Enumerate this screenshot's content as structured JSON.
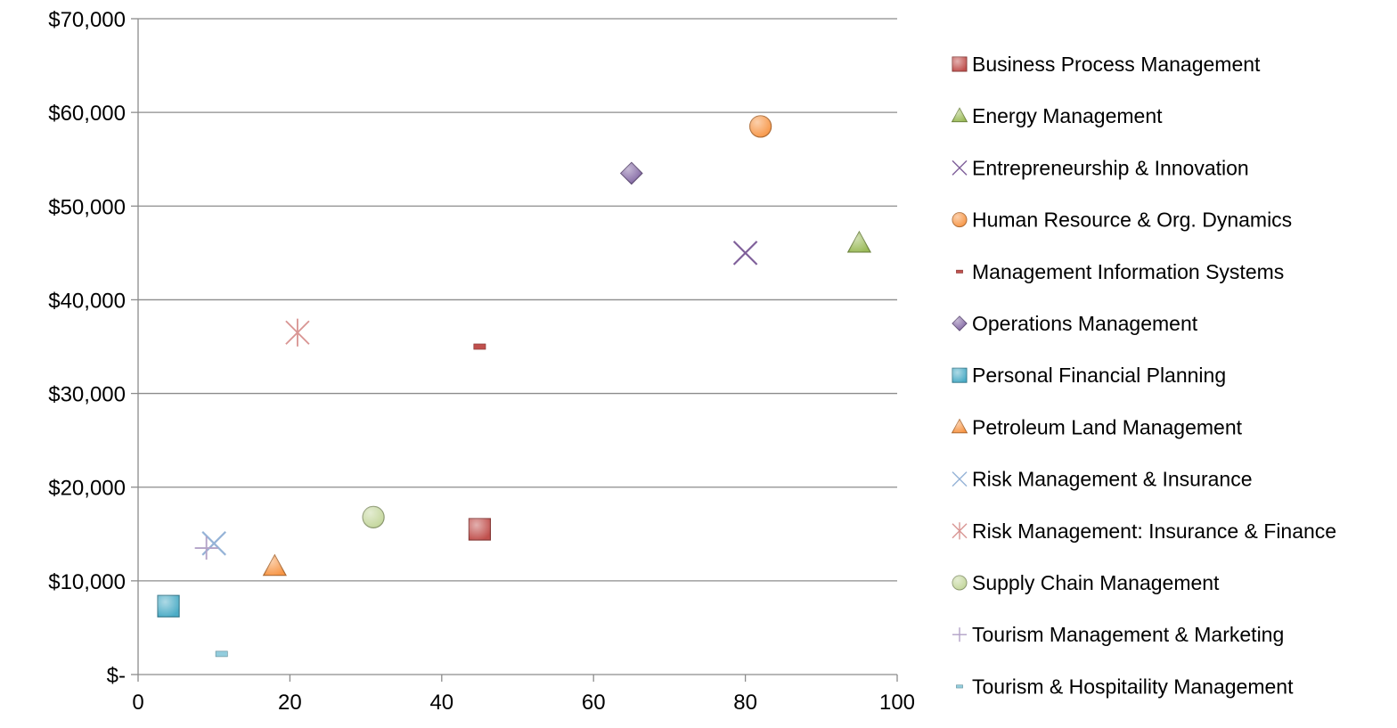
{
  "chart_data": {
    "type": "scatter",
    "title": "",
    "xlabel": "",
    "ylabel": "",
    "xlim": [
      0,
      100
    ],
    "ylim": [
      0,
      70000
    ],
    "x_ticks": [
      0,
      20,
      40,
      60,
      80,
      100
    ],
    "x_tick_labels": [
      "0",
      "20",
      "40",
      "60",
      "80",
      "100"
    ],
    "y_ticks": [
      0,
      10000,
      20000,
      30000,
      40000,
      50000,
      60000,
      70000
    ],
    "y_tick_labels": [
      "$-",
      "$10,000",
      "$20,000",
      "$30,000",
      "$40,000",
      "$50,000",
      "$60,000",
      "$70,000"
    ],
    "grid": "horizontal",
    "legend_position": "right",
    "series": [
      {
        "name": "Business Process Management",
        "marker": "square",
        "color": "#c0504d",
        "x": 45,
        "y": 15500
      },
      {
        "name": "Energy Management",
        "marker": "triangle",
        "color": "#9bbb59",
        "x": 95,
        "y": 46000
      },
      {
        "name": "Entrepreneurship & Innovation",
        "marker": "x",
        "color": "#7f5f9a",
        "x": 80,
        "y": 45000
      },
      {
        "name": "Human Resource & Org. Dynamics",
        "marker": "circle",
        "color": "#f79646",
        "x": 82,
        "y": 58500
      },
      {
        "name": "Management Information Systems",
        "marker": "dash",
        "color": "#c0504d",
        "x": 45,
        "y": 35000
      },
      {
        "name": "Operations Management",
        "marker": "diamond",
        "color": "#8064a2",
        "x": 65,
        "y": 53500
      },
      {
        "name": "Personal Financial Planning",
        "marker": "square",
        "color": "#4bacc6",
        "x": 4,
        "y": 7300
      },
      {
        "name": "Petroleum Land Management",
        "marker": "triangle",
        "color": "#f79646",
        "x": 18,
        "y": 11500
      },
      {
        "name": "Risk Management & Insurance",
        "marker": "x",
        "color": "#95b3d7",
        "x": 10,
        "y": 14000
      },
      {
        "name": "Risk Management: Insurance & Finance",
        "marker": "star",
        "color": "#d99694",
        "x": 21,
        "y": 36500
      },
      {
        "name": "Supply Chain Management",
        "marker": "circle",
        "color": "#c3d69b",
        "x": 31,
        "y": 16800
      },
      {
        "name": "Tourism Management & Marketing",
        "marker": "plus",
        "color": "#b3a2c7",
        "x": 9,
        "y": 13500
      },
      {
        "name": "Tourism & Hospitaility Management",
        "marker": "dash",
        "color": "#93cddd",
        "x": 11,
        "y": 2200
      }
    ]
  }
}
